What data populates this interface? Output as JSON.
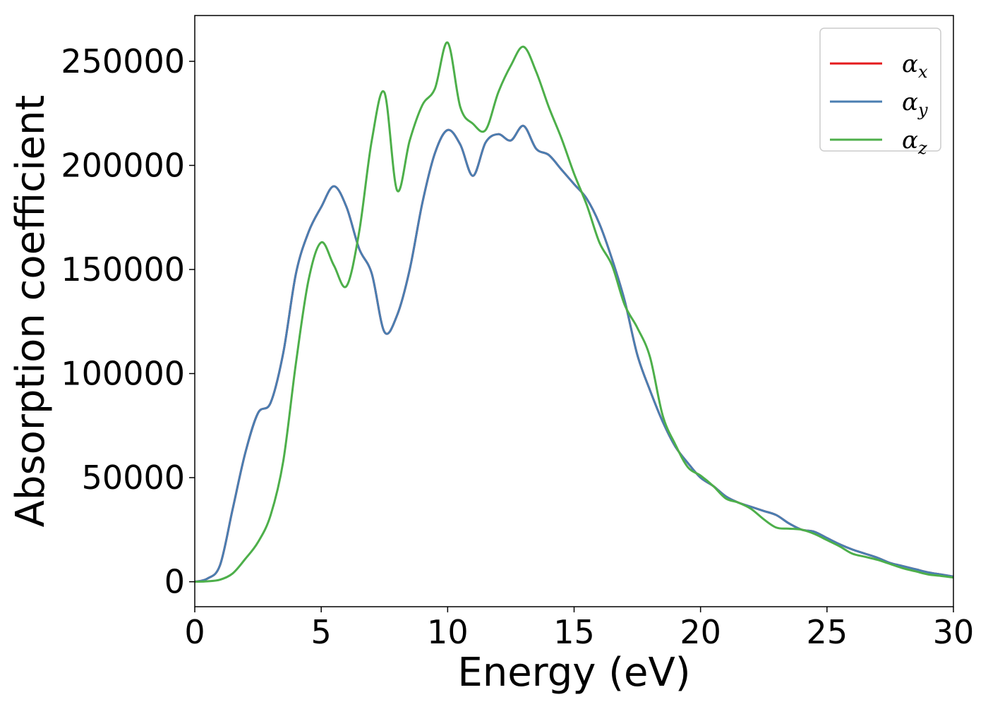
{
  "chart_data": {
    "type": "line",
    "xlabel": "Energy (eV)",
    "ylabel": "Absorption coefficient",
    "xlim": [
      0,
      30
    ],
    "ylim": [
      -12000,
      272000
    ],
    "x_ticks": [
      0,
      5,
      10,
      15,
      20,
      25,
      30
    ],
    "x_tick_labels": [
      "0",
      "5",
      "10",
      "15",
      "20",
      "25",
      "30"
    ],
    "y_ticks": [
      0,
      50000,
      100000,
      150000,
      200000,
      250000
    ],
    "y_tick_labels": [
      "0",
      "50000",
      "100000",
      "150000",
      "200000",
      "250000"
    ],
    "grid": false,
    "legend_position": "top-right",
    "x": [
      0,
      0.5,
      1,
      1.5,
      2,
      2.5,
      3,
      3.5,
      4,
      4.5,
      5,
      5.5,
      6,
      6.5,
      7,
      7.5,
      8,
      8.5,
      9,
      9.5,
      10,
      10.5,
      11,
      11.5,
      12,
      12.5,
      13,
      13.5,
      14,
      14.5,
      15,
      15.5,
      16,
      16.5,
      17,
      17.5,
      18,
      18.5,
      19,
      19.5,
      20,
      20.5,
      21,
      21.5,
      22,
      22.5,
      23,
      23.5,
      24,
      24.5,
      25,
      25.5,
      26,
      26.5,
      27,
      27.5,
      28,
      28.5,
      29,
      29.5,
      30
    ],
    "series": [
      {
        "name": "α",
        "subscript": "x",
        "color": "#e41a1c",
        "values": [
          0,
          1500,
          8000,
          35000,
          62000,
          81000,
          86000,
          110000,
          148000,
          168000,
          180000,
          190000,
          180000,
          160000,
          148000,
          120000,
          128000,
          150000,
          182000,
          206000,
          217000,
          210000,
          195000,
          211000,
          215000,
          212000,
          219000,
          208000,
          205000,
          198000,
          191000,
          184000,
          172000,
          155000,
          135000,
          109000,
          92000,
          77000,
          65000,
          57000,
          50000,
          46000,
          41000,
          38000,
          36000,
          34000,
          32000,
          28000,
          25000,
          24000,
          21000,
          18000,
          15500,
          13500,
          11500,
          9000,
          7500,
          6000,
          4500,
          3500,
          2500
        ]
      },
      {
        "name": "α",
        "subscript": "y",
        "color": "#4a7eb1",
        "values": [
          0,
          1500,
          8000,
          35000,
          62000,
          81000,
          86000,
          110000,
          148000,
          168000,
          180000,
          190000,
          180000,
          160000,
          148000,
          120000,
          128000,
          150000,
          182000,
          206000,
          217000,
          210000,
          195000,
          211000,
          215000,
          212000,
          219000,
          208000,
          205000,
          198000,
          191000,
          184000,
          172000,
          155000,
          135000,
          109000,
          92000,
          77000,
          65000,
          57000,
          50000,
          46000,
          41000,
          38000,
          36000,
          34000,
          32000,
          28000,
          25000,
          24000,
          21000,
          18000,
          15500,
          13500,
          11500,
          9000,
          7500,
          6000,
          4500,
          3500,
          2500
        ]
      },
      {
        "name": "α",
        "subscript": "z",
        "color": "#4daf4a",
        "values": [
          0,
          200,
          1000,
          4000,
          11000,
          19000,
          32000,
          58000,
          105000,
          145000,
          163000,
          152000,
          142000,
          168000,
          212000,
          235000,
          188000,
          212000,
          229000,
          237000,
          259000,
          228000,
          220000,
          217000,
          235000,
          248000,
          257000,
          245000,
          228000,
          213000,
          196000,
          181000,
          163000,
          152000,
          133000,
          122000,
          108000,
          80000,
          66000,
          55000,
          51000,
          46000,
          40000,
          38000,
          35000,
          30000,
          26000,
          25500,
          25000,
          23000,
          20000,
          17000,
          13500,
          12000,
          10500,
          8500,
          6500,
          5000,
          3500,
          2800,
          2000
        ]
      }
    ]
  }
}
